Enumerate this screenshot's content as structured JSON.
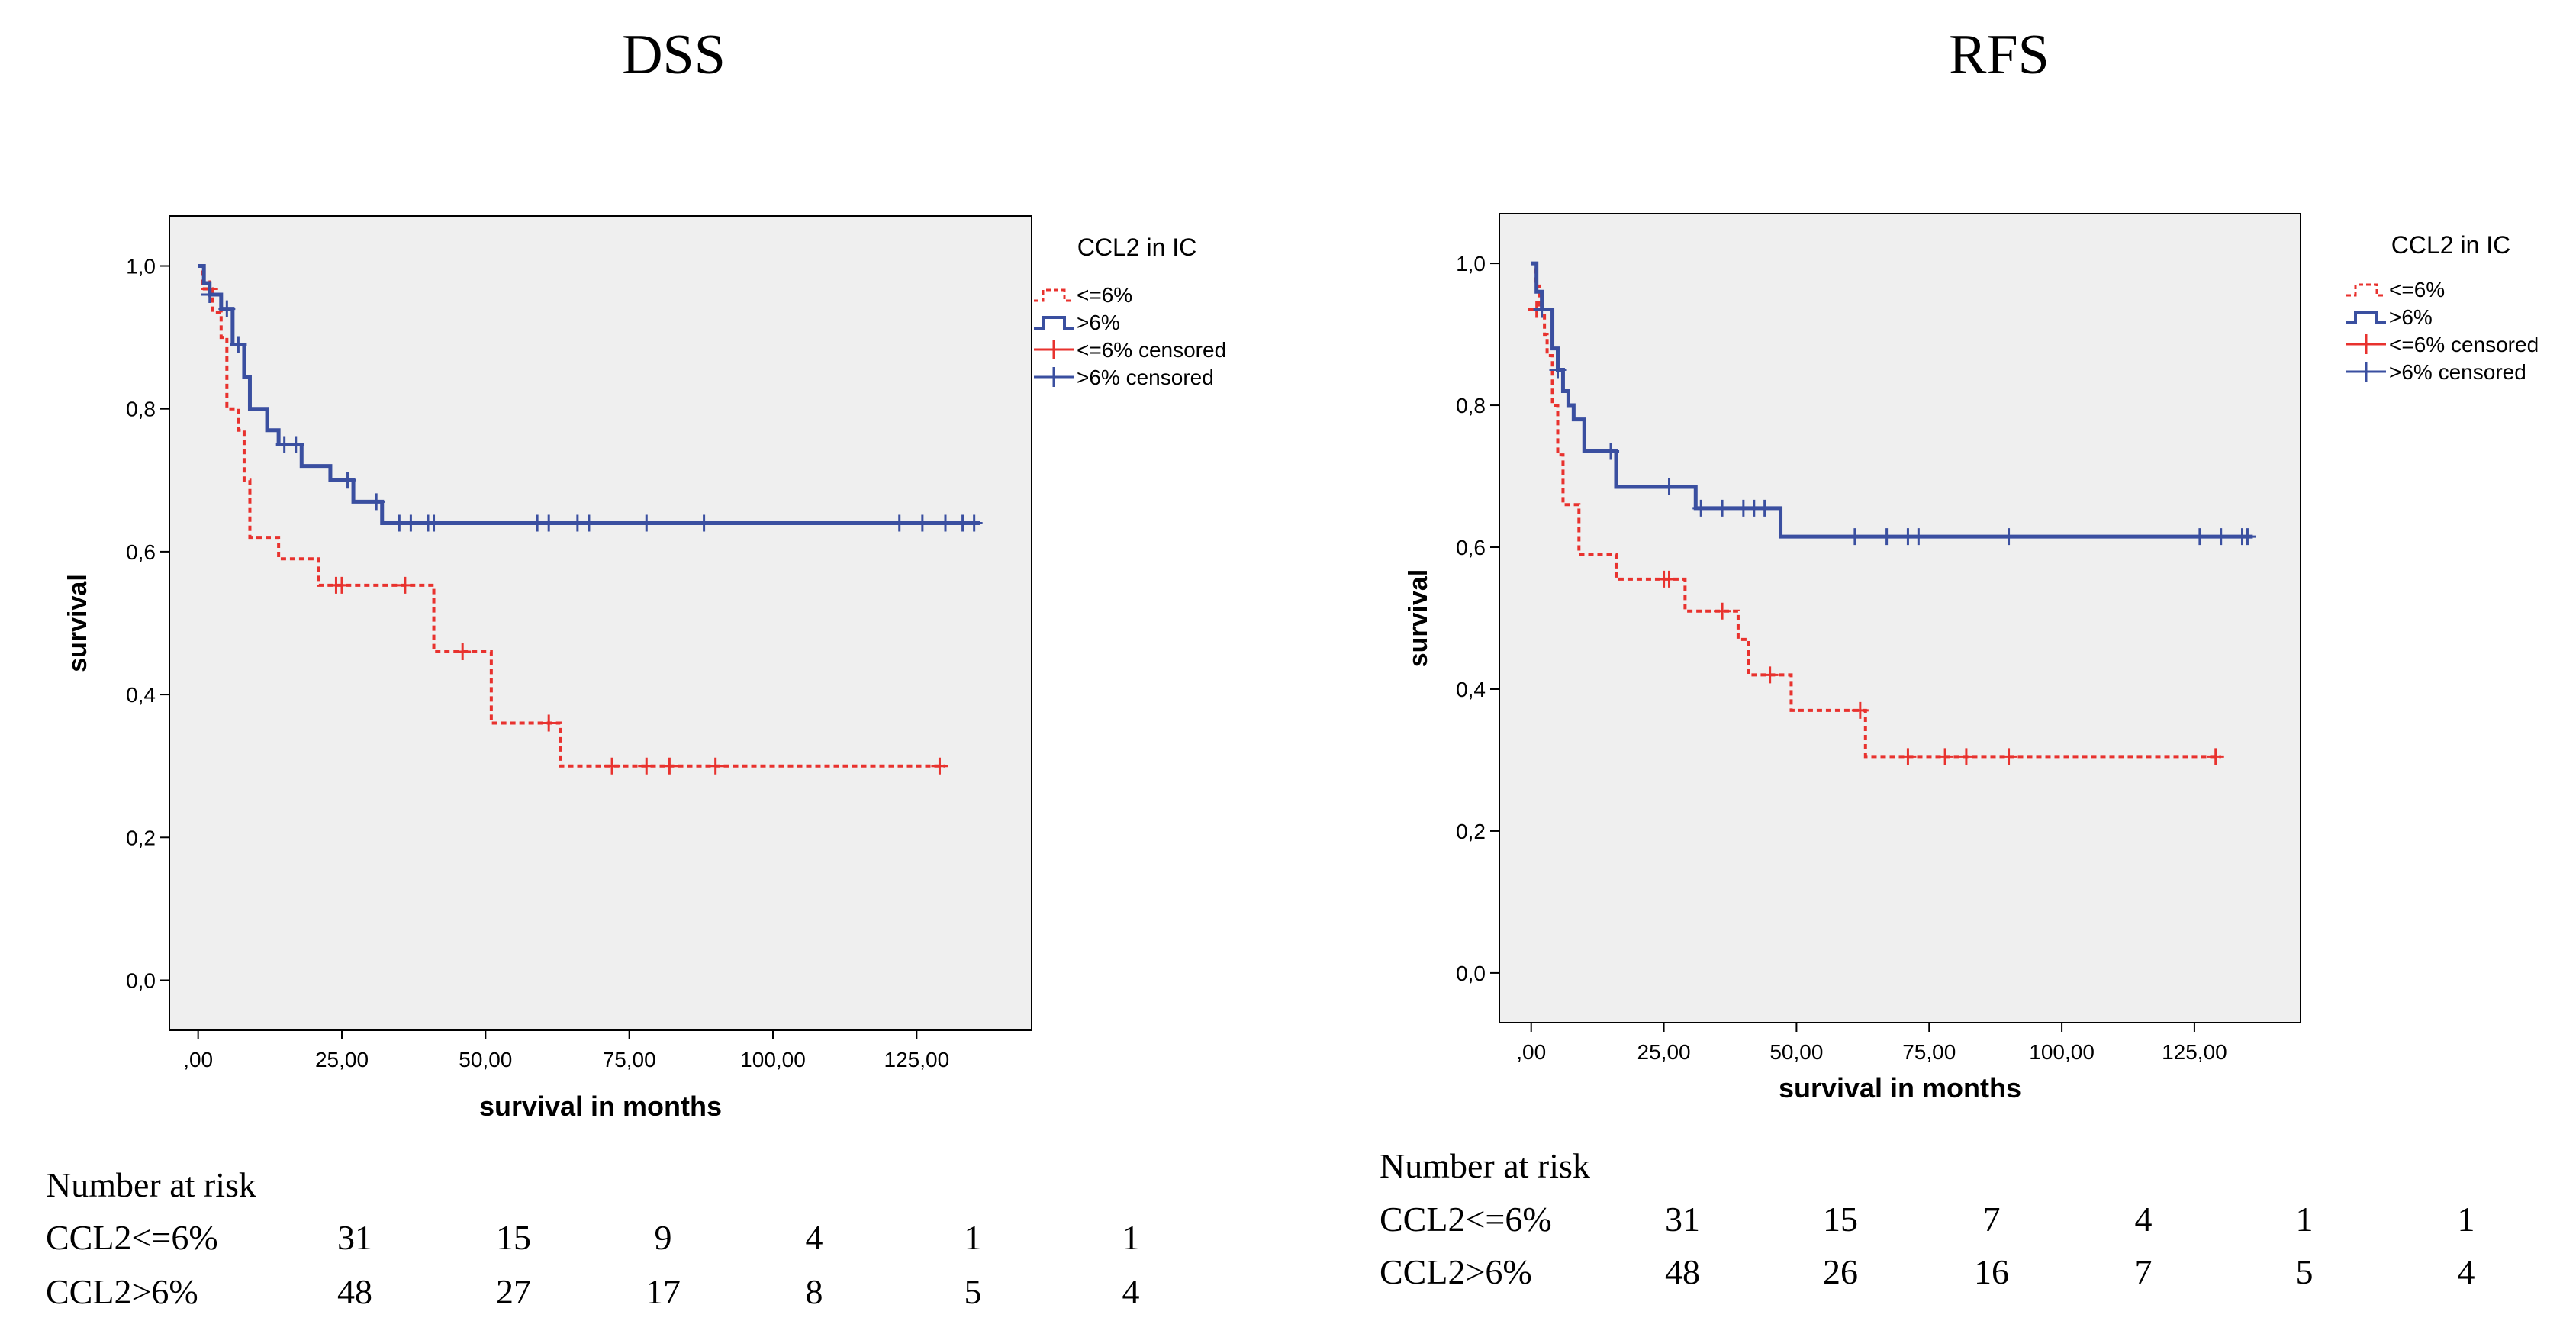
{
  "panels": [
    {
      "title": "DSS",
      "chart_data": {
        "type": "line",
        "subtype": "kaplan-meier",
        "title": "DSS",
        "xlabel": "survival in months",
        "ylabel": "survival",
        "xlim": [
          -5,
          145
        ],
        "ylim": [
          -0.07,
          1.07
        ],
        "x_ticks": [
          0,
          25,
          50,
          75,
          100,
          125
        ],
        "x_tick_labels": [
          ",00",
          "25,00",
          "50,00",
          "75,00",
          "100,00",
          "125,00"
        ],
        "y_ticks": [
          0,
          0.2,
          0.4,
          0.6,
          0.8,
          1.0
        ],
        "y_tick_labels": [
          "0,0",
          "0,2",
          "0,4",
          "0,6",
          "0,8",
          "1,0"
        ],
        "grid": false,
        "legend": {
          "title": "CCL2 in IC",
          "position": "top-right outside",
          "entries": [
            "<=6%",
            ">6%",
            "<=6% censored",
            ">6% censored"
          ]
        },
        "series": [
          {
            "name": "<=6%",
            "color": "#e8322e",
            "dash": true,
            "steps": [
              [
                0,
                1.0
              ],
              [
                0.8,
                0.968
              ],
              [
                2.5,
                0.935
              ],
              [
                4,
                0.9
              ],
              [
                5,
                0.8
              ],
              [
                7,
                0.77
              ],
              [
                8,
                0.7
              ],
              [
                9,
                0.62
              ],
              [
                14,
                0.59
              ],
              [
                21,
                0.553
              ],
              [
                41,
                0.46
              ],
              [
                51,
                0.36
              ],
              [
                63,
                0.3
              ],
              [
                130,
                0.3
              ]
            ],
            "censored": [
              [
                2,
                0.968
              ],
              [
                24,
                0.553
              ],
              [
                25,
                0.553
              ],
              [
                36,
                0.553
              ],
              [
                46,
                0.46
              ],
              [
                61,
                0.36
              ],
              [
                72,
                0.3
              ],
              [
                78,
                0.3
              ],
              [
                82,
                0.3
              ],
              [
                90,
                0.3
              ],
              [
                129,
                0.3
              ]
            ]
          },
          {
            "name": ">6%",
            "color": "#3a4fa0",
            "dash": false,
            "steps": [
              [
                0,
                1.0
              ],
              [
                1,
                0.976
              ],
              [
                2,
                0.96
              ],
              [
                4,
                0.94
              ],
              [
                6,
                0.89
              ],
              [
                8,
                0.845
              ],
              [
                9,
                0.8
              ],
              [
                12,
                0.77
              ],
              [
                14,
                0.75
              ],
              [
                18,
                0.72
              ],
              [
                23,
                0.7
              ],
              [
                27,
                0.67
              ],
              [
                32,
                0.64
              ],
              [
                136,
                0.64
              ]
            ],
            "censored": [
              [
                2,
                0.96
              ],
              [
                5,
                0.94
              ],
              [
                7,
                0.89
              ],
              [
                15,
                0.75
              ],
              [
                17,
                0.75
              ],
              [
                26,
                0.7
              ],
              [
                31,
                0.67
              ],
              [
                35,
                0.64
              ],
              [
                37,
                0.64
              ],
              [
                40,
                0.64
              ],
              [
                41,
                0.64
              ],
              [
                59,
                0.64
              ],
              [
                61,
                0.64
              ],
              [
                66,
                0.64
              ],
              [
                68,
                0.64
              ],
              [
                78,
                0.64
              ],
              [
                88,
                0.64
              ],
              [
                122,
                0.64
              ],
              [
                126,
                0.64
              ],
              [
                130,
                0.64
              ],
              [
                133,
                0.64
              ],
              [
                135,
                0.64
              ]
            ]
          }
        ]
      },
      "risk_table": {
        "header": "Number at risk",
        "rows": [
          {
            "label": "CCL2<=6%",
            "values": [
              "31",
              "15",
              "9",
              "4",
              "1",
              "1"
            ]
          },
          {
            "label": "CCL2>6%",
            "values": [
              "48",
              "27",
              "17",
              "8",
              "5",
              "4"
            ]
          }
        ]
      }
    },
    {
      "title": "RFS",
      "chart_data": {
        "type": "line",
        "subtype": "kaplan-meier",
        "title": "RFS",
        "xlabel": "survival in months",
        "ylabel": "survival",
        "xlim": [
          -6,
          145
        ],
        "ylim": [
          -0.07,
          1.07
        ],
        "x_ticks": [
          0,
          25,
          50,
          75,
          100,
          125
        ],
        "x_tick_labels": [
          ",00",
          "25,00",
          "50,00",
          "75,00",
          "100,00",
          "125,00"
        ],
        "y_ticks": [
          0,
          0.2,
          0.4,
          0.6,
          0.8,
          1.0
        ],
        "y_tick_labels": [
          "0,0",
          "0,2",
          "0,4",
          "0,6",
          "0,8",
          "1,0"
        ],
        "grid": false,
        "legend": {
          "title": "CCL2 in IC",
          "position": "top-right outside",
          "entries": [
            "<=6%",
            ">6%",
            "<=6% censored",
            ">6% censored"
          ]
        },
        "series": [
          {
            "name": "<=6%",
            "color": "#e8322e",
            "dash": true,
            "steps": [
              [
                0,
                1.0
              ],
              [
                0.8,
                0.968
              ],
              [
                1.5,
                0.935
              ],
              [
                2.5,
                0.9
              ],
              [
                3,
                0.87
              ],
              [
                4,
                0.8
              ],
              [
                5,
                0.73
              ],
              [
                6,
                0.66
              ],
              [
                9,
                0.59
              ],
              [
                16,
                0.555
              ],
              [
                29,
                0.51
              ],
              [
                39,
                0.47
              ],
              [
                41,
                0.42
              ],
              [
                49,
                0.37
              ],
              [
                63,
                0.305
              ],
              [
                130,
                0.305
              ]
            ],
            "censored": [
              [
                1,
                0.935
              ],
              [
                25,
                0.555
              ],
              [
                26,
                0.555
              ],
              [
                36,
                0.51
              ],
              [
                45,
                0.42
              ],
              [
                62,
                0.37
              ],
              [
                71,
                0.305
              ],
              [
                78,
                0.305
              ],
              [
                82,
                0.305
              ],
              [
                90,
                0.305
              ],
              [
                129,
                0.305
              ]
            ]
          },
          {
            "name": ">6%",
            "color": "#3a4fa0",
            "dash": false,
            "steps": [
              [
                0,
                1.0
              ],
              [
                1,
                0.96
              ],
              [
                2,
                0.935
              ],
              [
                4,
                0.88
              ],
              [
                5,
                0.85
              ],
              [
                6,
                0.82
              ],
              [
                7,
                0.8
              ],
              [
                8,
                0.78
              ],
              [
                10,
                0.735
              ],
              [
                16,
                0.685
              ],
              [
                31,
                0.655
              ],
              [
                47,
                0.615
              ],
              [
                136,
                0.615
              ]
            ],
            "censored": [
              [
                2,
                0.935
              ],
              [
                5,
                0.85
              ],
              [
                15,
                0.735
              ],
              [
                26,
                0.685
              ],
              [
                32,
                0.655
              ],
              [
                36,
                0.655
              ],
              [
                40,
                0.655
              ],
              [
                42,
                0.655
              ],
              [
                44,
                0.655
              ],
              [
                61,
                0.615
              ],
              [
                67,
                0.615
              ],
              [
                71,
                0.615
              ],
              [
                73,
                0.615
              ],
              [
                90,
                0.615
              ],
              [
                126,
                0.615
              ],
              [
                130,
                0.615
              ],
              [
                134,
                0.615
              ],
              [
                135,
                0.615
              ]
            ]
          }
        ]
      },
      "risk_table": {
        "header": "Number at risk",
        "rows": [
          {
            "label": "CCL2<=6%",
            "values": [
              "31",
              "15",
              "7",
              "4",
              "1",
              "1"
            ]
          },
          {
            "label": "CCL2>6%",
            "values": [
              "48",
              "26",
              "16",
              "7",
              "5",
              "4"
            ]
          }
        ]
      }
    }
  ]
}
